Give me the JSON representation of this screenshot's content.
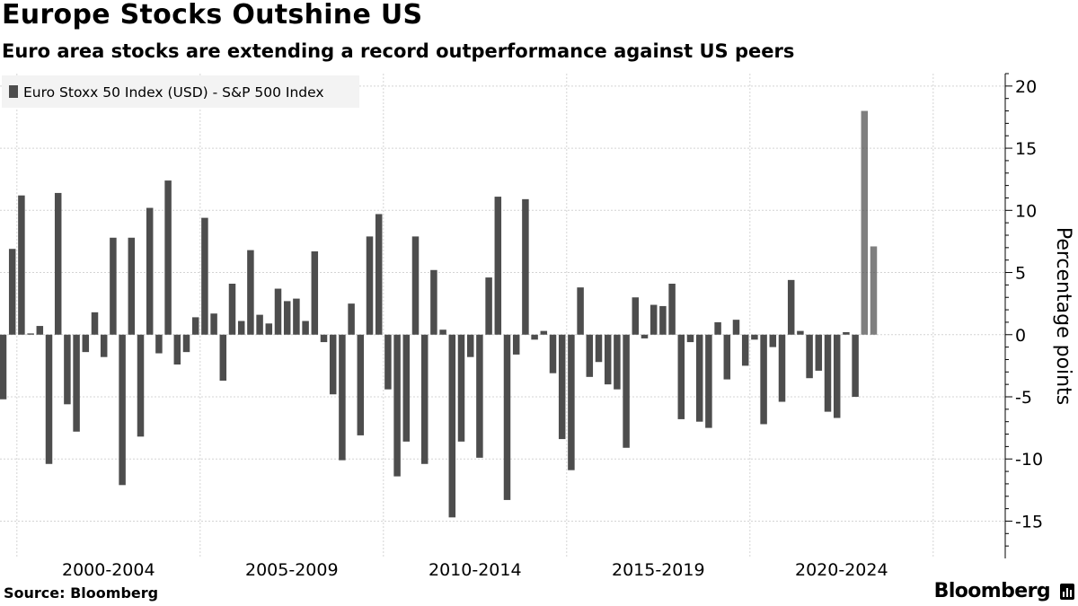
{
  "title": "Europe Stocks Outshine US",
  "subtitle": "Euro area stocks are extending a record outperformance against US peers",
  "source": "Source: Bloomberg",
  "brand": "Bloomberg",
  "brand_icon": "bloomberg-terminal-icon",
  "chart_data": {
    "type": "bar",
    "title": "",
    "xlabel": "",
    "ylabel": "Percentage points",
    "ylim": [
      -18,
      21
    ],
    "yticks": [
      20,
      15,
      10,
      5,
      0,
      -5,
      -10,
      -15
    ],
    "grid": true,
    "legend": {
      "position": "top-left",
      "entries": [
        "Euro Stoxx 50 Index (USD) - S&P 500 Index"
      ]
    },
    "period_labels": [
      "2000-2004",
      "2005-2009",
      "2010-2014",
      "2015-2019",
      "2020-2024"
    ],
    "highlight": {
      "from_index": 94,
      "to_index": 96,
      "note": "latest quarters (2025)"
    },
    "colors": {
      "bar": "#4d4d4d",
      "highlight_fill": "#cceb99",
      "highlight_stroke": "#8fc743",
      "grid": "#d4d4d4",
      "axis": "#000000",
      "legend_bg": "#f3f3f3"
    },
    "series": [
      {
        "name": "Euro Stoxx 50 Index (USD) - S&P 500 Index",
        "values": [
          -5.2,
          6.9,
          11.2,
          0.1,
          0.7,
          -10.4,
          11.4,
          -5.6,
          -7.8,
          -1.4,
          1.8,
          -1.8,
          7.8,
          -12.1,
          7.8,
          -8.2,
          10.2,
          -1.5,
          12.4,
          -2.4,
          -1.4,
          1.4,
          9.4,
          1.7,
          -3.7,
          4.1,
          1.1,
          6.8,
          1.6,
          0.9,
          3.7,
          2.7,
          2.9,
          1.1,
          6.7,
          -0.6,
          -4.8,
          -10.1,
          2.5,
          -8.1,
          7.9,
          9.7,
          -4.4,
          -11.4,
          -8.6,
          7.9,
          -10.4,
          5.2,
          0.4,
          -14.7,
          -8.6,
          -1.8,
          -9.9,
          4.6,
          11.1,
          -13.3,
          -1.6,
          10.9,
          -0.4,
          0.3,
          -3.1,
          -8.4,
          -10.9,
          3.8,
          -3.4,
          -2.2,
          -4.0,
          -4.4,
          -9.1,
          3.0,
          -0.3,
          2.4,
          2.3,
          4.1,
          -6.8,
          -0.6,
          -7.0,
          -7.5,
          1.0,
          -3.6,
          1.2,
          -2.5,
          -0.4,
          -7.2,
          -1.0,
          -5.4,
          4.4,
          0.3,
          -3.5,
          -2.9,
          -6.2,
          -6.7,
          0.2,
          -5.0,
          18.0,
          7.1
        ]
      }
    ]
  }
}
